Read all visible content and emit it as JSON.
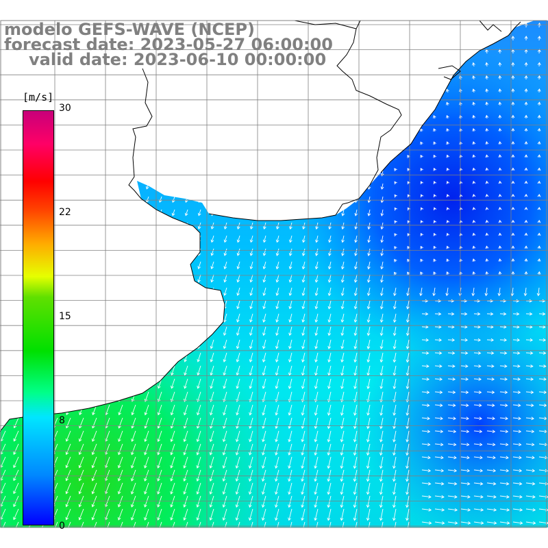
{
  "title": {
    "line1": "modelo GEFS-WAVE (NCEP)",
    "line2": "forecast date: 2023-05-27 06:00:00",
    "line3": "valid date: 2023-06-10 00:00:00"
  },
  "colorbar": {
    "unit": "[m/s]",
    "ticks": [
      "30",
      "22",
      "15",
      "8",
      "0"
    ]
  },
  "colors": {
    "land": "#ffffff",
    "grid": "#808080",
    "coast": "#000000",
    "arrow": "#ffffff"
  }
}
